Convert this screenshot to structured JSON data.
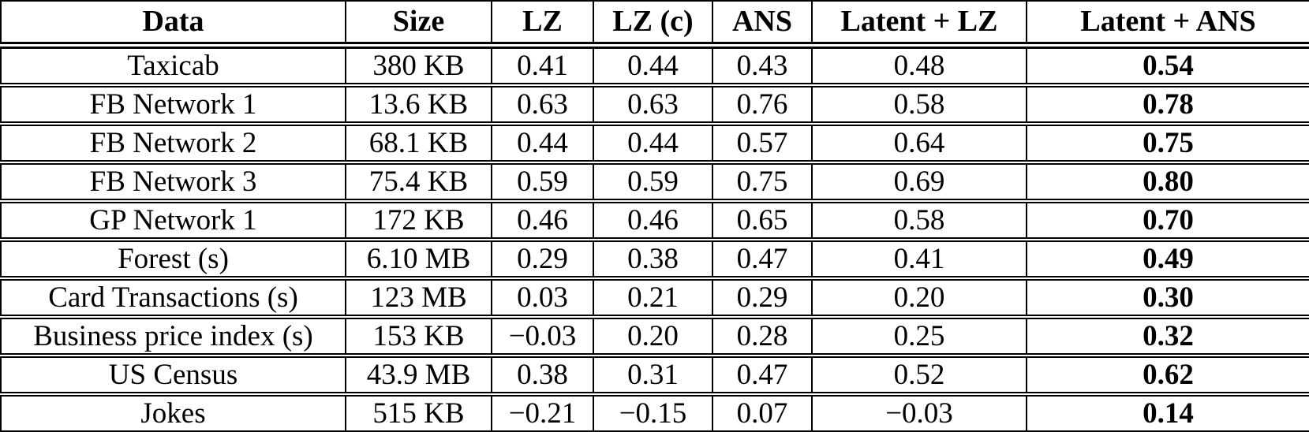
{
  "table": {
    "columns": [
      {
        "key": "data",
        "label": "Data"
      },
      {
        "key": "size",
        "label": "Size"
      },
      {
        "key": "lz",
        "label": "LZ"
      },
      {
        "key": "lz-c",
        "label": "LZ (c)"
      },
      {
        "key": "ans",
        "label": "ANS"
      },
      {
        "key": "latent-lz",
        "label": "Latent + LZ"
      },
      {
        "key": "latent-ans",
        "label": "Latent + ANS"
      }
    ],
    "bold_column_index": 6,
    "rows": [
      {
        "cells": [
          "Taxicab",
          "380 KB",
          "0.41",
          "0.44",
          "0.43",
          "0.48",
          "0.54"
        ]
      },
      {
        "cells": [
          "FB Network 1",
          "13.6 KB",
          "0.63",
          "0.63",
          "0.76",
          "0.58",
          "0.78"
        ]
      },
      {
        "cells": [
          "FB Network 2",
          "68.1 KB",
          "0.44",
          "0.44",
          "0.57",
          "0.64",
          "0.75"
        ]
      },
      {
        "cells": [
          "FB Network 3",
          "75.4 KB",
          "0.59",
          "0.59",
          "0.75",
          "0.69",
          "0.80"
        ]
      },
      {
        "cells": [
          "GP Network 1",
          "172 KB",
          "0.46",
          "0.46",
          "0.65",
          "0.58",
          "0.70"
        ]
      },
      {
        "cells": [
          "Forest (s)",
          "6.10 MB",
          "0.29",
          "0.38",
          "0.47",
          "0.41",
          "0.49"
        ]
      },
      {
        "cells": [
          "Card Transactions (s)",
          "123 MB",
          "0.03",
          "0.21",
          "0.29",
          "0.20",
          "0.30"
        ]
      },
      {
        "cells": [
          "Business price index (s)",
          "153 KB",
          "−0.03",
          "0.20",
          "0.28",
          "0.25",
          "0.32"
        ]
      },
      {
        "cells": [
          "US Census",
          "43.9 MB",
          "0.38",
          "0.31",
          "0.47",
          "0.52",
          "0.62"
        ]
      },
      {
        "cells": [
          "Jokes",
          "515 KB",
          "−0.21",
          "−0.15",
          "0.07",
          "−0.03",
          "0.14"
        ]
      }
    ]
  },
  "colors": {
    "text": "#000000",
    "background": "#ffffff",
    "border": "#000000"
  }
}
